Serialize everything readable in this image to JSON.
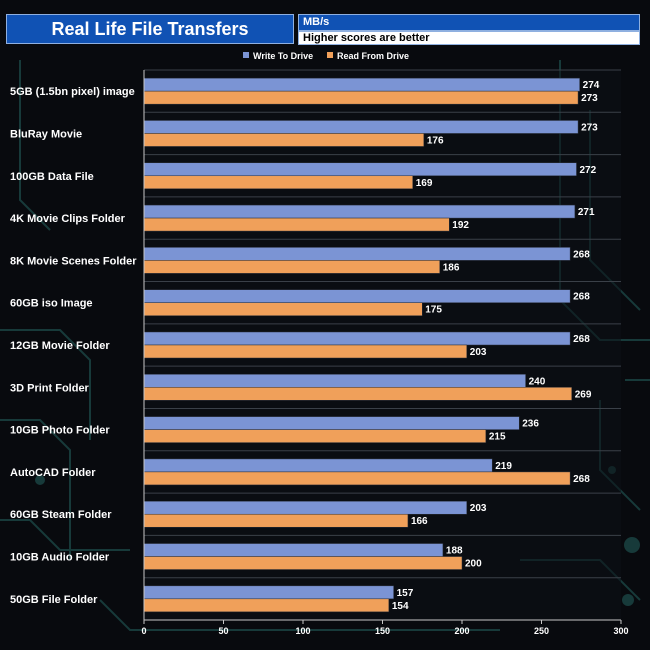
{
  "header": {
    "title": "Real Life File Transfers",
    "unit": "MB/s",
    "subtitle": "Higher scores are better"
  },
  "colors": {
    "write": "#7b94d4",
    "read": "#f0a05a",
    "background": "#080a0e",
    "plot": "#0d1015",
    "text": "#ffffff"
  },
  "chart_data": {
    "type": "bar",
    "orientation": "horizontal",
    "title": "Real Life File Transfers",
    "xlabel": "MB/s",
    "xlim": [
      0,
      300
    ],
    "xticks": [
      0,
      50,
      100,
      150,
      200,
      250,
      300
    ],
    "legend_position": "top",
    "categories": [
      "5GB (1.5bn pixel) image",
      "BluRay Movie",
      "100GB Data File",
      "4K Movie Clips Folder",
      "8K Movie Scenes Folder",
      "60GB iso Image",
      "12GB Movie Folder",
      "3D Print Folder",
      "10GB Photo Folder",
      "AutoCAD Folder",
      "60GB Steam Folder",
      "10GB Audio Folder",
      "50GB File Folder"
    ],
    "series": [
      {
        "name": "Write To  Drive",
        "values": [
          274,
          273,
          272,
          271,
          268,
          268,
          268,
          240,
          236,
          219,
          203,
          188,
          157
        ]
      },
      {
        "name": "Read From  Drive",
        "values": [
          273,
          176,
          169,
          192,
          186,
          175,
          203,
          269,
          215,
          268,
          166,
          200,
          154
        ]
      }
    ]
  }
}
